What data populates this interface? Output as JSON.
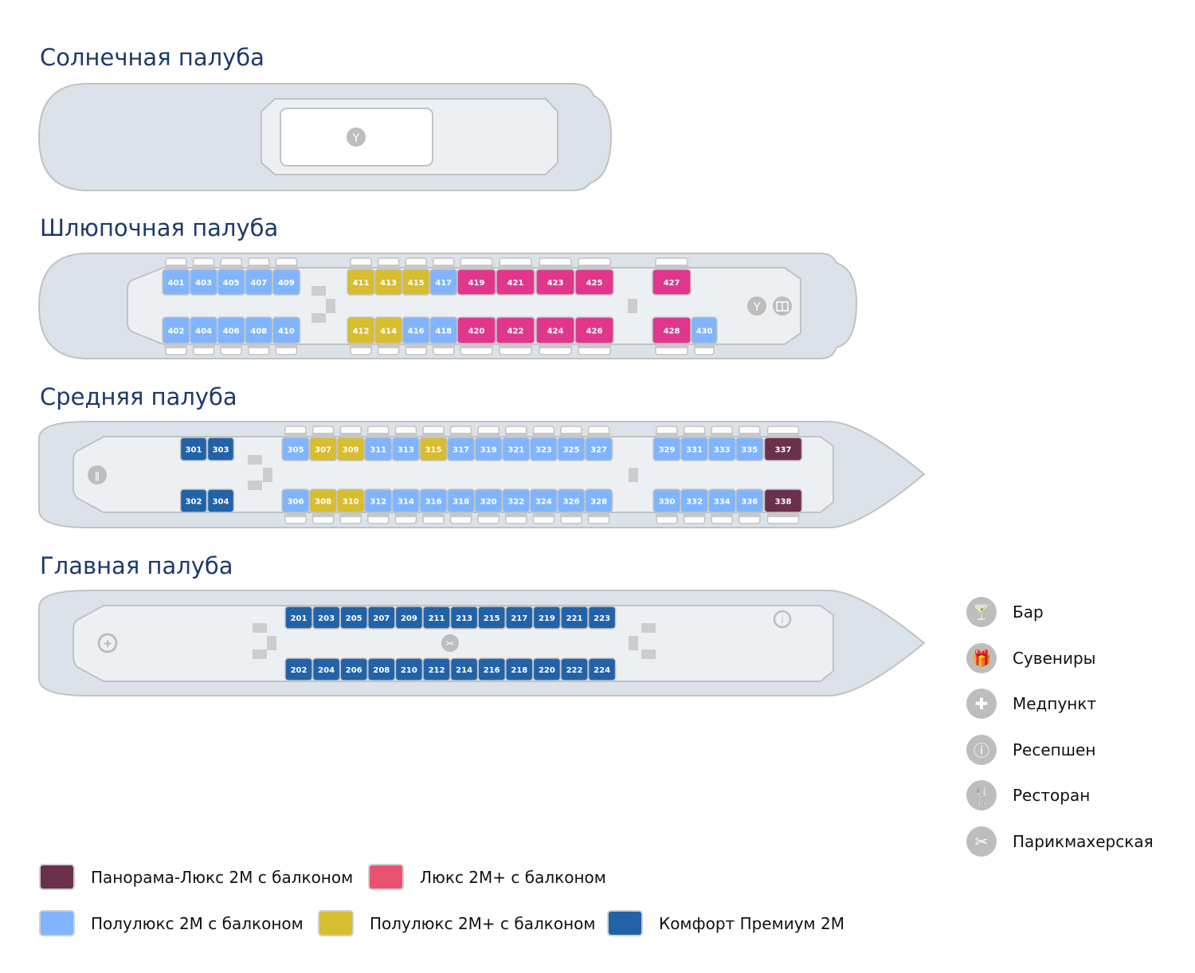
{
  "decks": {
    "sun": {
      "title": "Солнечная палуба"
    },
    "boat": {
      "title": "Шлюпочная палуба",
      "top": [
        [
          "401",
          "semi"
        ],
        [
          "403",
          "semi"
        ],
        [
          "405",
          "semi"
        ],
        [
          "407",
          "semi"
        ],
        [
          "409",
          "semi"
        ],
        [
          "411",
          "semiplus"
        ],
        [
          "413",
          "semiplus"
        ],
        [
          "415",
          "semiplus"
        ],
        [
          "417",
          "semi"
        ],
        [
          "419",
          "lux"
        ],
        [
          "421",
          "lux"
        ],
        [
          "423",
          "lux"
        ],
        [
          "425",
          "lux"
        ],
        [
          "427",
          "lux"
        ]
      ],
      "bottom": [
        [
          "402",
          "semi"
        ],
        [
          "404",
          "semi"
        ],
        [
          "406",
          "semi"
        ],
        [
          "408",
          "semi"
        ],
        [
          "410",
          "semi"
        ],
        [
          "412",
          "semiplus"
        ],
        [
          "414",
          "semiplus"
        ],
        [
          "416",
          "semi"
        ],
        [
          "418",
          "semi"
        ],
        [
          "420",
          "lux"
        ],
        [
          "422",
          "lux"
        ],
        [
          "424",
          "lux"
        ],
        [
          "426",
          "lux"
        ],
        [
          "428",
          "lux"
        ],
        [
          "430",
          "semi"
        ]
      ]
    },
    "middle": {
      "title": "Средняя палуба",
      "top": [
        [
          "301",
          "comfort"
        ],
        [
          "303",
          "comfort"
        ],
        [
          "305",
          "semi"
        ],
        [
          "307",
          "semiplus"
        ],
        [
          "309",
          "semiplus"
        ],
        [
          "311",
          "semi"
        ],
        [
          "313",
          "semi"
        ],
        [
          "315",
          "semiplus"
        ],
        [
          "317",
          "semi"
        ],
        [
          "319",
          "semi"
        ],
        [
          "321",
          "semi"
        ],
        [
          "323",
          "semi"
        ],
        [
          "325",
          "semi"
        ],
        [
          "327",
          "semi"
        ],
        [
          "329",
          "semi"
        ],
        [
          "331",
          "semi"
        ],
        [
          "333",
          "semi"
        ],
        [
          "335",
          "semi"
        ],
        [
          "337",
          "panorama"
        ]
      ],
      "bottom": [
        [
          "302",
          "comfort"
        ],
        [
          "304",
          "comfort"
        ],
        [
          "306",
          "semi"
        ],
        [
          "308",
          "semiplus"
        ],
        [
          "310",
          "semiplus"
        ],
        [
          "312",
          "semi"
        ],
        [
          "314",
          "semi"
        ],
        [
          "316",
          "semi"
        ],
        [
          "318",
          "semi"
        ],
        [
          "320",
          "semi"
        ],
        [
          "322",
          "semi"
        ],
        [
          "324",
          "semi"
        ],
        [
          "326",
          "semi"
        ],
        [
          "328",
          "semi"
        ],
        [
          "330",
          "semi"
        ],
        [
          "332",
          "semi"
        ],
        [
          "334",
          "semi"
        ],
        [
          "336",
          "semi"
        ],
        [
          "338",
          "panorama"
        ]
      ]
    },
    "main": {
      "title": "Главная палуба",
      "top": [
        [
          "201",
          "comfort"
        ],
        [
          "203",
          "comfort"
        ],
        [
          "205",
          "comfort"
        ],
        [
          "207",
          "comfort"
        ],
        [
          "209",
          "comfort"
        ],
        [
          "211",
          "comfort"
        ],
        [
          "213",
          "comfort"
        ],
        [
          "215",
          "comfort"
        ],
        [
          "217",
          "comfort"
        ],
        [
          "219",
          "comfort"
        ],
        [
          "221",
          "comfort"
        ],
        [
          "223",
          "comfort"
        ]
      ],
      "bottom": [
        [
          "202",
          "comfort"
        ],
        [
          "204",
          "comfort"
        ],
        [
          "206",
          "comfort"
        ],
        [
          "208",
          "comfort"
        ],
        [
          "210",
          "comfort"
        ],
        [
          "212",
          "comfort"
        ],
        [
          "214",
          "comfort"
        ],
        [
          "216",
          "comfort"
        ],
        [
          "218",
          "comfort"
        ],
        [
          "220",
          "comfort"
        ],
        [
          "222",
          "comfort"
        ],
        [
          "224",
          "comfort"
        ]
      ]
    }
  },
  "colors": {
    "panorama": "#6b304d",
    "lux": "#e0378c",
    "lux_legend": "#e8546f",
    "semi": "#80b5fd",
    "semiplus": "#d7bd30",
    "comfort": "#2263a8"
  },
  "legend_categories": [
    {
      "key": "panorama",
      "label": "Панорама-Люкс 2М с балконом"
    },
    {
      "key": "lux_legend",
      "label": "Люкс 2М+ с балконом"
    },
    {
      "key": "semi",
      "label": "Полулюкс 2М с балконом"
    },
    {
      "key": "semiplus",
      "label": "Полулюкс 2М+ с балконом"
    },
    {
      "key": "comfort",
      "label": "Комфорт Премиум 2М"
    }
  ],
  "legend_facilities": [
    {
      "icon": "cocktail-icon",
      "glyph": "🍸",
      "label": "Бар"
    },
    {
      "icon": "gift-icon",
      "glyph": "🎁",
      "label": "Сувениры"
    },
    {
      "icon": "medical-cross-icon",
      "glyph": "✚",
      "label": "Медпункт"
    },
    {
      "icon": "info-icon",
      "glyph": "ⓘ",
      "label": "Ресепшен"
    },
    {
      "icon": "restaurant-icon",
      "glyph": "🍴",
      "label": "Ресторан"
    },
    {
      "icon": "scissors-icon",
      "glyph": "✂",
      "label": "Парикмахерская"
    }
  ]
}
